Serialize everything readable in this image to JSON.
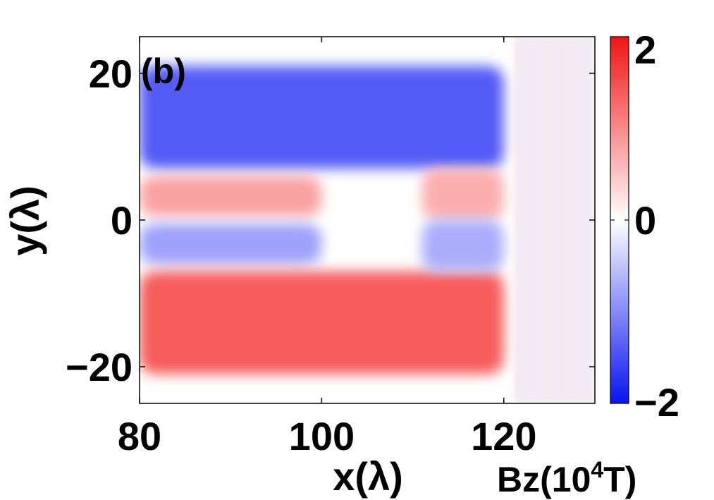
{
  "chart_data": {
    "type": "heatmap",
    "panel_label": "(b)",
    "xlabel": "x(λ)",
    "ylabel": "y(λ)",
    "xlim": [
      80,
      130
    ],
    "ylim": [
      -25,
      25
    ],
    "x_ticks": [
      80,
      100,
      120
    ],
    "x_tick_labels": [
      "80",
      "100",
      "120"
    ],
    "y_ticks": [
      20,
      0,
      -20
    ],
    "y_tick_labels": [
      "20",
      "0",
      "−20"
    ],
    "colorbar": {
      "label_main": "Bz(10",
      "label_sup": "4",
      "label_end": "T)",
      "range": [
        -2,
        2
      ],
      "ticks": [
        2,
        0,
        -2
      ],
      "tick_labels": [
        "2",
        "0",
        "−2"
      ],
      "colors": {
        "low": "#0a14f0",
        "mid": "#ffffff",
        "high": "#f01414"
      }
    },
    "regions": [
      {
        "name": "upper-blue-lobe",
        "value": -1.4,
        "x": [
          80,
          120
        ],
        "y": [
          7,
          21
        ]
      },
      {
        "name": "upper-red-stripe",
        "value": 0.8,
        "x": [
          80,
          100
        ],
        "y": [
          0.5,
          6
        ]
      },
      {
        "name": "lower-blue-stripe",
        "value": -0.8,
        "x": [
          80,
          100
        ],
        "y": [
          -6,
          -0.5
        ]
      },
      {
        "name": "lower-red-lobe",
        "value": 1.4,
        "x": [
          80,
          120
        ],
        "y": [
          -21,
          -7
        ]
      },
      {
        "name": "right-red-patch",
        "value": 0.7,
        "x": [
          111,
          120
        ],
        "y": [
          0,
          7
        ]
      },
      {
        "name": "right-blue-patch",
        "value": -0.7,
        "x": [
          111,
          120
        ],
        "y": [
          -7,
          0
        ]
      },
      {
        "name": "oscillating-wake",
        "value": 0.3,
        "x": [
          121,
          130
        ],
        "y": [
          -25,
          25
        ]
      }
    ],
    "grid": false
  }
}
